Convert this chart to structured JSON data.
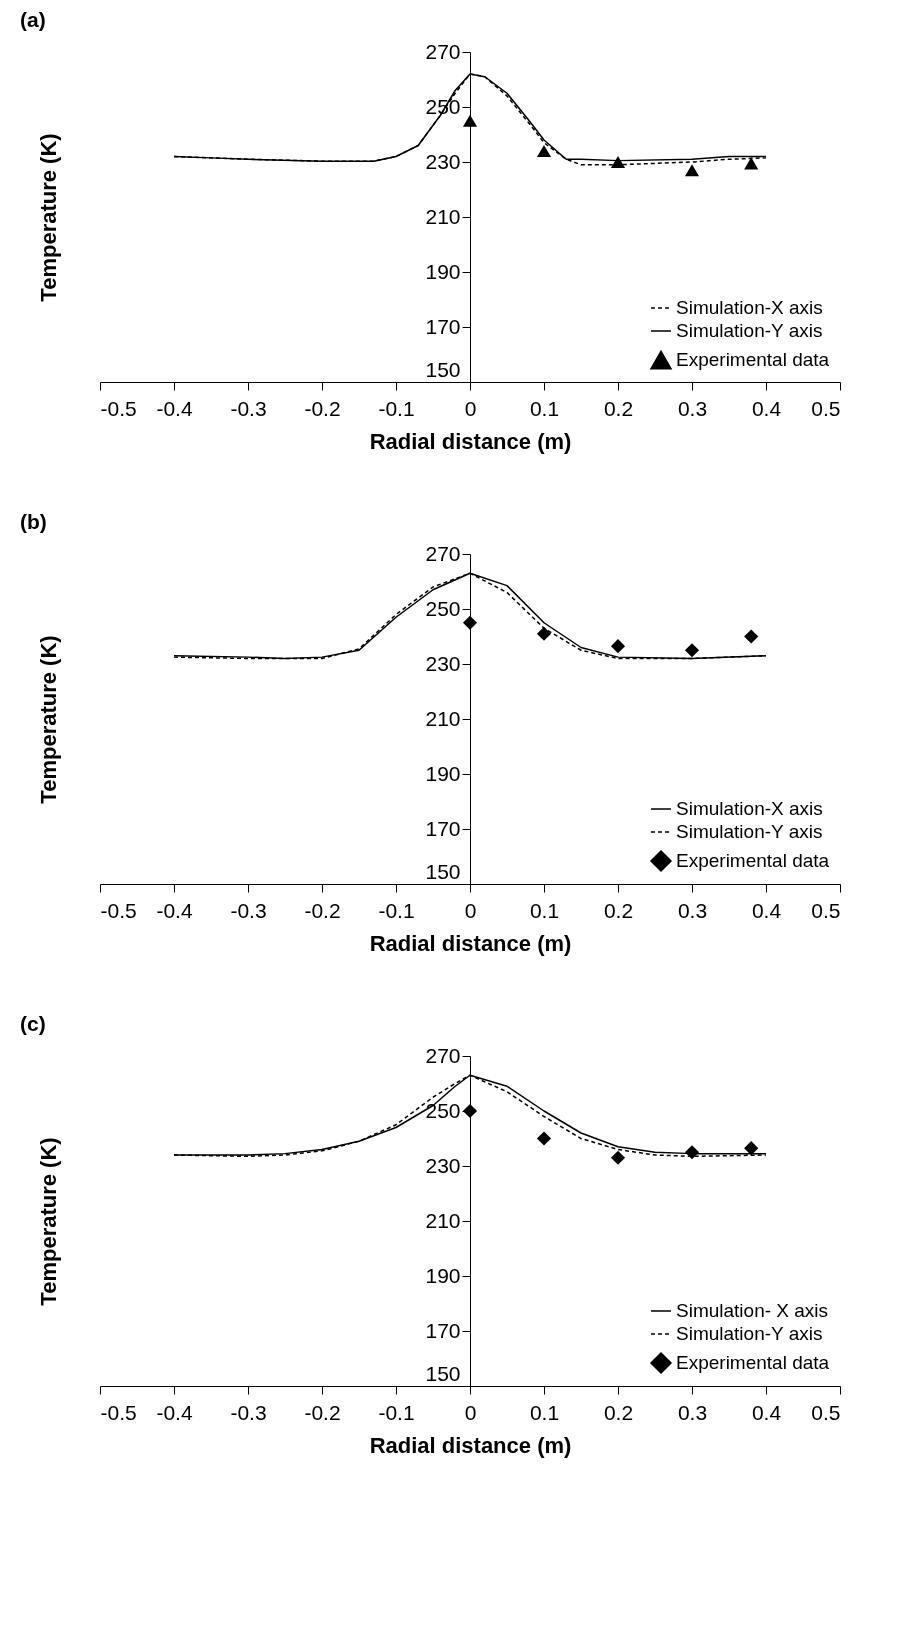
{
  "chart_data": [
    {
      "type": "line",
      "title": "(a)",
      "xlabel": "Radial distance (m)",
      "ylabel": "Temperature (K)",
      "xlim": [
        -0.5,
        0.5
      ],
      "xticks": [
        -0.5,
        -0.4,
        -0.3,
        -0.2,
        -0.1,
        0,
        0.1,
        0.2,
        0.3,
        0.4,
        0.5
      ],
      "ylim": [
        150,
        270
      ],
      "yticks": [
        150,
        170,
        190,
        210,
        230,
        250,
        270
      ],
      "legend": "bottom right",
      "series": [
        {
          "name": "Simulation-X axis",
          "color": "#000000",
          "line_style": "dashed",
          "x": [
            -0.4,
            -0.35,
            -0.3,
            -0.2,
            -0.13,
            -0.1,
            -0.07,
            -0.04,
            -0.02,
            0,
            0.02,
            0.05,
            0.08,
            0.1,
            0.13,
            0.15,
            0.2,
            0.3,
            0.35,
            0.4
          ],
          "values": [
            232,
            231.5,
            231,
            230.3,
            230.3,
            232,
            236,
            247,
            255,
            262,
            261,
            254,
            244,
            237,
            231,
            229,
            229,
            230,
            231,
            231.5
          ]
        },
        {
          "name": "Simulation-Y axis",
          "color": "#000000",
          "line_style": "solid",
          "x": [
            -0.4,
            -0.35,
            -0.3,
            -0.2,
            -0.13,
            -0.1,
            -0.07,
            -0.04,
            -0.02,
            0,
            0.02,
            0.05,
            0.08,
            0.1,
            0.13,
            0.15,
            0.2,
            0.3,
            0.35,
            0.4
          ],
          "values": [
            232,
            231.5,
            231,
            230.3,
            230.3,
            232,
            236,
            247,
            256,
            262,
            261,
            255,
            245,
            238,
            231,
            231,
            230.5,
            231,
            232,
            232
          ]
        },
        {
          "name": "Experimental data",
          "type": "scatter",
          "color": "#000000",
          "marker": "triangle",
          "x": [
            0,
            0.1,
            0.2,
            0.3,
            0.38
          ],
          "values": [
            245,
            234,
            230,
            227,
            229.5
          ]
        }
      ]
    },
    {
      "type": "line",
      "title": "(b)",
      "xlabel": "Radial distance (m)",
      "ylabel": "Temperature (K)",
      "xlim": [
        -0.5,
        0.5
      ],
      "xticks": [
        -0.5,
        -0.4,
        -0.3,
        -0.2,
        -0.1,
        0,
        0.1,
        0.2,
        0.3,
        0.4,
        0.5
      ],
      "ylim": [
        150,
        270
      ],
      "yticks": [
        150,
        170,
        190,
        210,
        230,
        250,
        270
      ],
      "legend": "bottom right",
      "series": [
        {
          "name": "Simulation-X axis",
          "color": "#000000",
          "line_style": "solid",
          "x": [
            -0.4,
            -0.3,
            -0.25,
            -0.2,
            -0.15,
            -0.1,
            -0.05,
            0,
            0.05,
            0.1,
            0.15,
            0.2,
            0.3,
            0.4
          ],
          "values": [
            233,
            232.5,
            232,
            232.5,
            235,
            247,
            257,
            263,
            258.5,
            245,
            236,
            232.5,
            232,
            233
          ]
        },
        {
          "name": "Simulation-Y axis",
          "color": "#000000",
          "line_style": "dashed",
          "x": [
            -0.4,
            -0.3,
            -0.25,
            -0.2,
            -0.15,
            -0.1,
            -0.05,
            0,
            0.05,
            0.1,
            0.15,
            0.2,
            0.3,
            0.4
          ],
          "values": [
            232.5,
            232,
            232,
            232,
            235.5,
            248,
            258,
            263,
            256,
            243,
            235,
            232,
            232,
            233
          ]
        },
        {
          "name": "Experimental data",
          "type": "scatter",
          "color": "#000000",
          "marker": "diamond",
          "x": [
            0,
            0.1,
            0.2,
            0.3,
            0.38
          ],
          "values": [
            245,
            241,
            236.5,
            235,
            240
          ]
        }
      ]
    },
    {
      "type": "line",
      "title": "(c)",
      "xlabel": "Radial distance (m)",
      "ylabel": "Temperature (K)",
      "xlim": [
        -0.5,
        0.5
      ],
      "xticks": [
        -0.5,
        -0.4,
        -0.3,
        -0.2,
        -0.1,
        0,
        0.1,
        0.2,
        0.3,
        0.4,
        0.5
      ],
      "ylim": [
        150,
        270
      ],
      "yticks": [
        150,
        170,
        190,
        210,
        230,
        250,
        270
      ],
      "legend": "bottom right",
      "series": [
        {
          "name": "Simulation- X axis",
          "color": "#000000",
          "line_style": "solid",
          "x": [
            -0.4,
            -0.3,
            -0.25,
            -0.2,
            -0.15,
            -0.1,
            -0.05,
            -0.02,
            0,
            0.05,
            0.1,
            0.15,
            0.2,
            0.25,
            0.3,
            0.4
          ],
          "values": [
            234,
            234,
            234.5,
            236,
            239,
            244,
            252,
            259,
            263,
            259,
            250,
            242,
            237,
            235,
            234.5,
            234.5
          ]
        },
        {
          "name": "Simulation-Y axis",
          "color": "#000000",
          "line_style": "dashed",
          "x": [
            -0.4,
            -0.3,
            -0.25,
            -0.2,
            -0.15,
            -0.1,
            -0.05,
            -0.02,
            0,
            0.05,
            0.1,
            0.15,
            0.2,
            0.25,
            0.3,
            0.4
          ],
          "values": [
            234,
            233.5,
            234,
            235.5,
            239,
            245,
            255,
            260,
            263,
            257,
            248,
            240,
            236,
            234,
            233.5,
            234
          ]
        },
        {
          "name": "Experimental data",
          "type": "scatter",
          "color": "#000000",
          "marker": "diamond",
          "x": [
            0,
            0.1,
            0.2,
            0.3,
            0.38
          ],
          "values": [
            250,
            240,
            233,
            235,
            236.5
          ]
        }
      ]
    }
  ]
}
